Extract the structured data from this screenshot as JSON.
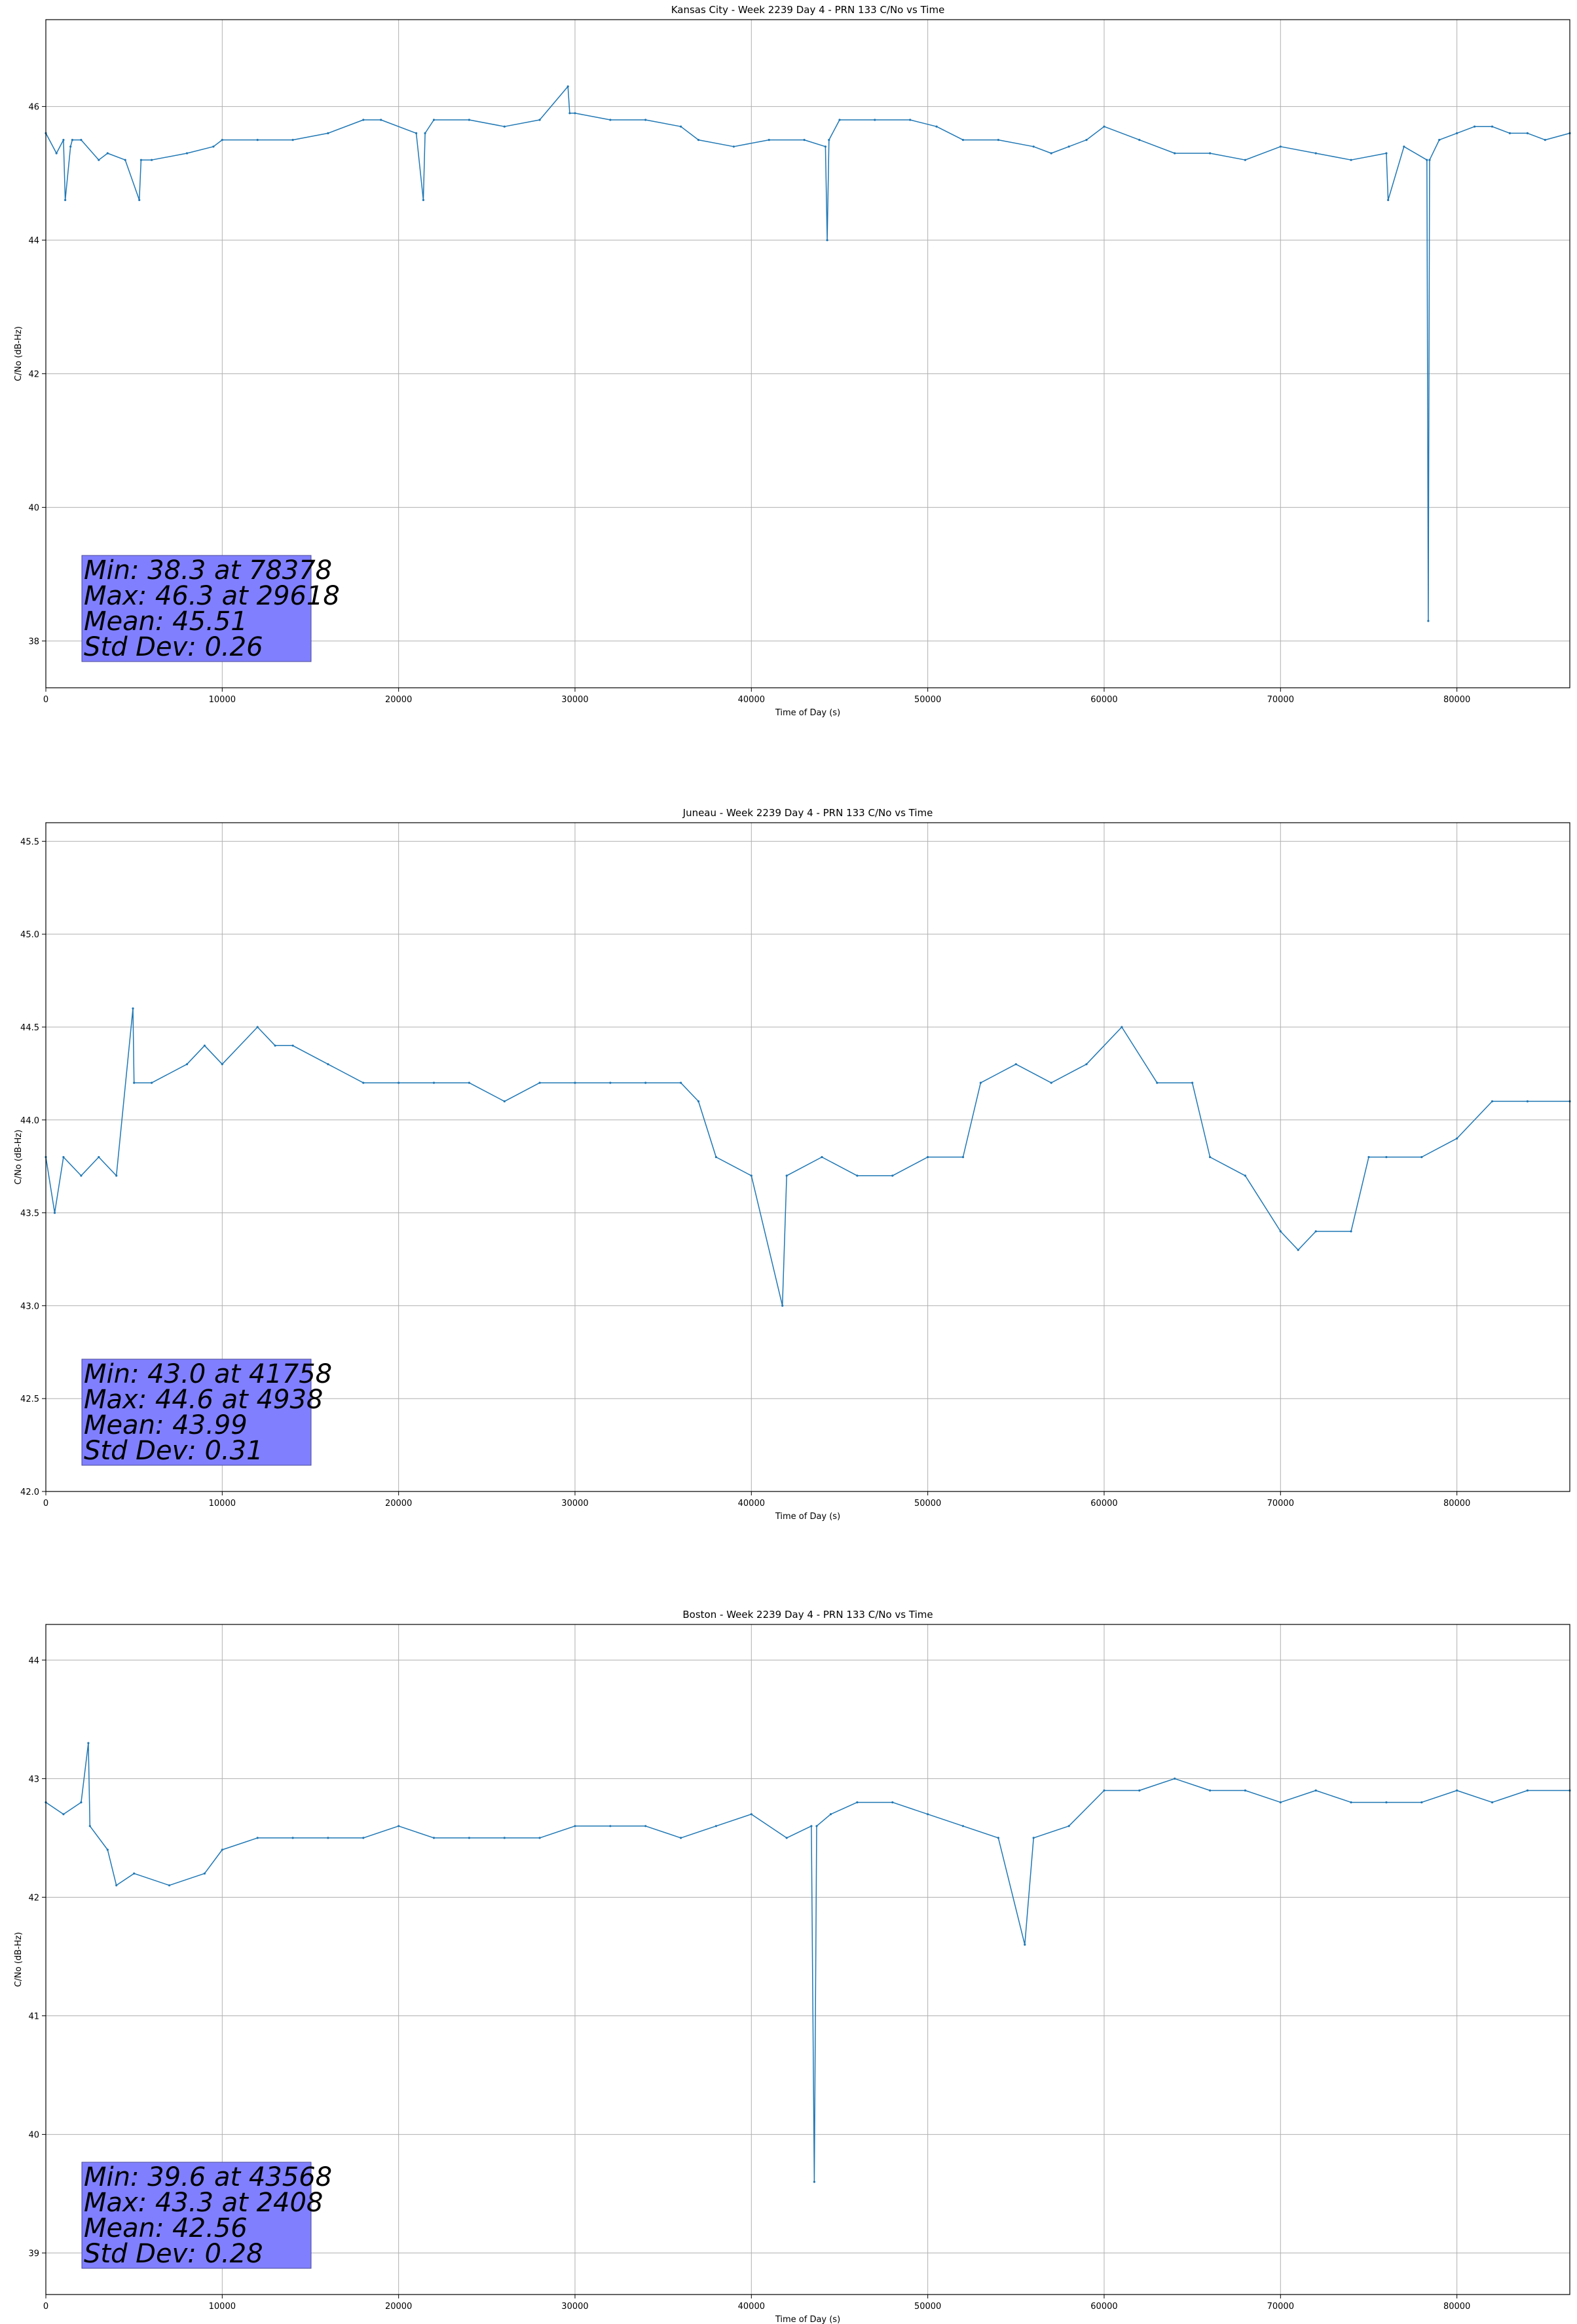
{
  "chart_data": [
    {
      "type": "line",
      "title": "Kansas City - Week 2239 Day 4 - PRN 133 C/No vs Time",
      "xlabel": "Time of Day (s)",
      "ylabel": "C/No (dB-Hz)",
      "xlim": [
        0,
        86400
      ],
      "ylim": [
        37.3,
        47.3
      ],
      "xticks": [
        0,
        10000,
        20000,
        30000,
        40000,
        50000,
        60000,
        70000,
        80000
      ],
      "yticks": [
        38,
        40,
        42,
        44,
        46
      ],
      "grid": true,
      "color": "#1f77b4",
      "stats": [
        "Min: 38.3 at 78378",
        "Max: 46.3 at 29618",
        "Mean: 45.51",
        "Std Dev: 0.26"
      ],
      "series": [
        {
          "x": [
            0,
            600,
            1000,
            1100,
            1400,
            1500,
            2000,
            3000,
            3500,
            4500,
            5300,
            5400,
            6000,
            8000,
            9500,
            10000,
            12000,
            14000,
            16000,
            18000,
            19000,
            21000,
            21400,
            21500,
            22000,
            24000,
            26000,
            28000,
            29600,
            29700,
            30000,
            32000,
            34000,
            36000,
            37000,
            39000,
            41000,
            43000,
            44200,
            44300,
            44400,
            45000,
            47000,
            49000,
            50500,
            52000,
            54000,
            56000,
            57000,
            58000,
            59000,
            60000,
            62000,
            64000,
            66000,
            68000,
            70000,
            72000,
            74000,
            76000,
            76100,
            77000,
            78300,
            78378,
            78450,
            79000,
            80000,
            81000,
            82000,
            83000,
            84000,
            85000,
            86400
          ],
          "y": [
            45.6,
            45.3,
            45.5,
            44.6,
            45.4,
            45.5,
            45.5,
            45.2,
            45.3,
            45.2,
            44.6,
            45.2,
            45.2,
            45.3,
            45.4,
            45.5,
            45.5,
            45.5,
            45.6,
            45.8,
            45.8,
            45.6,
            44.6,
            45.6,
            45.8,
            45.8,
            45.7,
            45.8,
            46.3,
            45.9,
            45.9,
            45.8,
            45.8,
            45.7,
            45.5,
            45.4,
            45.5,
            45.5,
            45.4,
            44.0,
            45.5,
            45.8,
            45.8,
            45.8,
            45.7,
            45.5,
            45.5,
            45.4,
            45.3,
            45.4,
            45.5,
            45.7,
            45.5,
            45.3,
            45.3,
            45.2,
            45.4,
            45.3,
            45.2,
            45.3,
            44.6,
            45.4,
            45.2,
            38.3,
            45.2,
            45.5,
            45.6,
            45.7,
            45.7,
            45.6,
            45.6,
            45.5,
            45.6
          ]
        }
      ]
    },
    {
      "type": "line",
      "title": "Juneau - Week 2239 Day 4 - PRN 133 C/No vs Time",
      "xlabel": "Time of Day (s)",
      "ylabel": "C/No (dB-Hz)",
      "xlim": [
        0,
        86400
      ],
      "ylim": [
        42.0,
        45.6
      ],
      "xticks": [
        0,
        10000,
        20000,
        30000,
        40000,
        50000,
        60000,
        70000,
        80000
      ],
      "yticks": [
        42.0,
        42.5,
        43.0,
        43.5,
        44.0,
        44.5,
        45.0,
        45.5
      ],
      "grid": true,
      "color": "#1f77b4",
      "stats": [
        "Min: 43.0 at 41758",
        "Max: 44.6 at 4938",
        "Mean: 43.99",
        "Std Dev: 0.31"
      ],
      "series": [
        {
          "x": [
            0,
            500,
            1000,
            2000,
            3000,
            4000,
            4938,
            5000,
            6000,
            8000,
            9000,
            10000,
            12000,
            13000,
            14000,
            16000,
            18000,
            20000,
            22000,
            24000,
            26000,
            28000,
            30000,
            32000,
            34000,
            36000,
            37000,
            38000,
            40000,
            41758,
            42000,
            44000,
            46000,
            48000,
            50000,
            52000,
            53000,
            55000,
            57000,
            59000,
            61000,
            63000,
            65000,
            66000,
            68000,
            70000,
            71000,
            72000,
            74000,
            75000,
            76000,
            78000,
            80000,
            82000,
            84000,
            86400
          ],
          "y": [
            43.8,
            43.5,
            43.8,
            43.7,
            43.8,
            43.7,
            44.6,
            44.2,
            44.2,
            44.3,
            44.4,
            44.3,
            44.5,
            44.4,
            44.4,
            44.3,
            44.2,
            44.2,
            44.2,
            44.2,
            44.1,
            44.2,
            44.2,
            44.2,
            44.2,
            44.2,
            44.1,
            43.8,
            43.7,
            43.0,
            43.7,
            43.8,
            43.7,
            43.7,
            43.8,
            43.8,
            44.2,
            44.3,
            44.2,
            44.3,
            44.5,
            44.2,
            44.2,
            43.8,
            43.7,
            43.4,
            43.3,
            43.4,
            43.4,
            43.8,
            43.8,
            43.8,
            43.9,
            44.1,
            44.1,
            44.1
          ]
        }
      ]
    },
    {
      "type": "line",
      "title": "Boston - Week 2239 Day 4 - PRN 133 C/No vs Time",
      "xlabel": "Time of Day (s)",
      "ylabel": "C/No (dB-Hz)",
      "xlim": [
        0,
        86400
      ],
      "ylim": [
        38.65,
        44.3
      ],
      "xticks": [
        0,
        10000,
        20000,
        30000,
        40000,
        50000,
        60000,
        70000,
        80000
      ],
      "yticks": [
        39,
        40,
        41,
        42,
        43,
        44
      ],
      "grid": true,
      "color": "#1f77b4",
      "stats": [
        "Min: 39.6 at 43568",
        "Max: 43.3 at 2408",
        "Mean: 42.56",
        "Std Dev: 0.28"
      ],
      "series": [
        {
          "x": [
            0,
            1000,
            2000,
            2408,
            2500,
            3500,
            4000,
            5000,
            7000,
            9000,
            10000,
            12000,
            14000,
            16000,
            18000,
            20000,
            22000,
            24000,
            26000,
            28000,
            30000,
            32000,
            34000,
            36000,
            38000,
            40000,
            42000,
            43400,
            43568,
            43700,
            44500,
            46000,
            48000,
            50000,
            52000,
            54000,
            55500,
            56000,
            58000,
            60000,
            62000,
            64000,
            66000,
            68000,
            70000,
            72000,
            74000,
            76000,
            78000,
            80000,
            82000,
            84000,
            86400
          ],
          "y": [
            42.8,
            42.7,
            42.8,
            43.3,
            42.6,
            42.4,
            42.1,
            42.2,
            42.1,
            42.2,
            42.4,
            42.5,
            42.5,
            42.5,
            42.5,
            42.6,
            42.5,
            42.5,
            42.5,
            42.5,
            42.6,
            42.6,
            42.6,
            42.5,
            42.6,
            42.7,
            42.5,
            42.6,
            39.6,
            42.6,
            42.7,
            42.8,
            42.8,
            42.7,
            42.6,
            42.5,
            41.6,
            42.5,
            42.6,
            42.9,
            42.9,
            43.0,
            42.9,
            42.9,
            42.8,
            42.9,
            42.8,
            42.8,
            42.8,
            42.9,
            42.8,
            42.9,
            42.9
          ]
        }
      ]
    }
  ]
}
